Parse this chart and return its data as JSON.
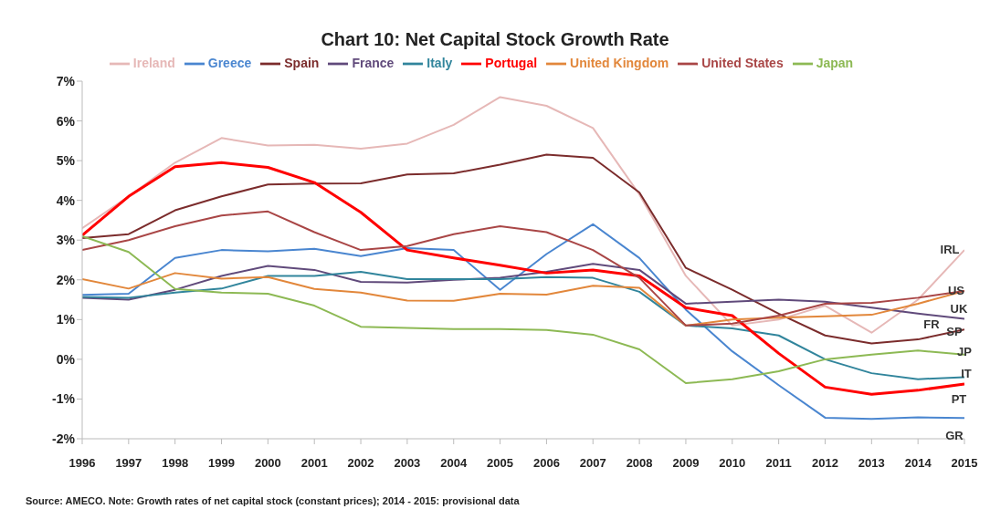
{
  "chart_data": {
    "type": "line",
    "title": "Chart 10: Net Capital Stock Growth Rate",
    "x": [
      1996,
      1997,
      1998,
      1999,
      2000,
      2001,
      2002,
      2003,
      2004,
      2005,
      2006,
      2007,
      2008,
      2009,
      2010,
      2011,
      2012,
      2013,
      2014,
      2015
    ],
    "xlim": [
      1996,
      2015
    ],
    "xticks": [
      1996,
      1997,
      1998,
      1999,
      2000,
      2001,
      2002,
      2003,
      2004,
      2005,
      2006,
      2007,
      2008,
      2009,
      2010,
      2011,
      2012,
      2013,
      2014,
      2015
    ],
    "ylim": [
      -2,
      7
    ],
    "yticks": [
      {
        "value": -2,
        "label": "-2%"
      },
      {
        "value": -1,
        "label": "-1%"
      },
      {
        "value": 0,
        "label": "0%"
      },
      {
        "value": 1,
        "label": "1%"
      },
      {
        "value": 2,
        "label": "2%"
      },
      {
        "value": 3,
        "label": "3%"
      },
      {
        "value": 4,
        "label": "4%"
      },
      {
        "value": 5,
        "label": "5%"
      },
      {
        "value": 6,
        "label": "6%"
      },
      {
        "value": 7,
        "label": "7%"
      }
    ],
    "grid": false,
    "legend": "top",
    "marker": "none",
    "line_style": "solid",
    "series": [
      {
        "name": "Ireland",
        "color": "#e6b8b7",
        "values": [
          3.3,
          4.1,
          4.95,
          5.57,
          5.38,
          5.4,
          5.3,
          5.43,
          5.9,
          6.6,
          6.38,
          5.82,
          4.15,
          2.1,
          0.85,
          1.0,
          1.35,
          0.67,
          1.5,
          2.75
        ]
      },
      {
        "name": "Greece",
        "color": "#4a86d0",
        "values": [
          1.62,
          1.65,
          2.55,
          2.75,
          2.72,
          2.78,
          2.6,
          2.8,
          2.75,
          1.75,
          2.65,
          3.4,
          2.55,
          1.25,
          0.2,
          -0.65,
          -1.47,
          -1.5,
          -1.46,
          -1.48
        ]
      },
      {
        "name": "Spain",
        "color": "#7b2c2c",
        "values": [
          3.05,
          3.15,
          3.75,
          4.1,
          4.4,
          4.42,
          4.43,
          4.65,
          4.68,
          4.9,
          5.15,
          5.07,
          4.2,
          2.3,
          1.75,
          1.15,
          0.6,
          0.4,
          0.5,
          0.75
        ]
      },
      {
        "name": "France",
        "color": "#604a7b",
        "values": [
          1.55,
          1.5,
          1.75,
          2.1,
          2.35,
          2.25,
          1.95,
          1.93,
          2.0,
          2.05,
          2.2,
          2.4,
          2.25,
          1.4,
          1.45,
          1.5,
          1.45,
          1.3,
          1.15,
          1.02
        ]
      },
      {
        "name": "Italy",
        "color": "#31859c",
        "values": [
          1.57,
          1.55,
          1.68,
          1.78,
          2.1,
          2.1,
          2.2,
          2.02,
          2.02,
          2.02,
          2.07,
          2.05,
          1.7,
          0.85,
          0.78,
          0.6,
          0.0,
          -0.35,
          -0.5,
          -0.45
        ]
      },
      {
        "name": "Portugal",
        "color": "#ff0000",
        "values": [
          3.12,
          4.1,
          4.85,
          4.95,
          4.83,
          4.45,
          3.7,
          2.75,
          2.55,
          2.37,
          2.17,
          2.25,
          2.1,
          1.3,
          1.1,
          0.15,
          -0.7,
          -0.88,
          -0.78,
          -0.62
        ]
      },
      {
        "name": "United Kingdom",
        "color": "#e2873b",
        "values": [
          2.02,
          1.78,
          2.17,
          2.03,
          2.07,
          1.77,
          1.68,
          1.48,
          1.47,
          1.65,
          1.63,
          1.85,
          1.8,
          0.85,
          1.0,
          1.05,
          1.08,
          1.12,
          1.4,
          1.72
        ]
      },
      {
        "name": "United States",
        "color": "#a94646",
        "values": [
          2.75,
          3.0,
          3.35,
          3.62,
          3.72,
          3.2,
          2.75,
          2.85,
          3.15,
          3.35,
          3.2,
          2.75,
          2.05,
          0.85,
          0.9,
          1.1,
          1.4,
          1.42,
          1.55,
          1.72
        ]
      },
      {
        "name": "Japan",
        "color": "#8db954",
        "values": [
          3.1,
          2.7,
          1.77,
          1.68,
          1.65,
          1.35,
          0.82,
          0.79,
          0.76,
          0.76,
          0.74,
          0.62,
          0.25,
          -0.6,
          -0.5,
          -0.3,
          0.0,
          0.12,
          0.22,
          0.12
        ]
      }
    ],
    "annotations": [
      "IRL",
      "US",
      "UK",
      "FR",
      "SP",
      "JP",
      "IT",
      "PT",
      "GR",
      "Source: AMECO. Note: Growth rates of net capital stock (constant prices); 2014 - 2015: provisional data"
    ]
  }
}
